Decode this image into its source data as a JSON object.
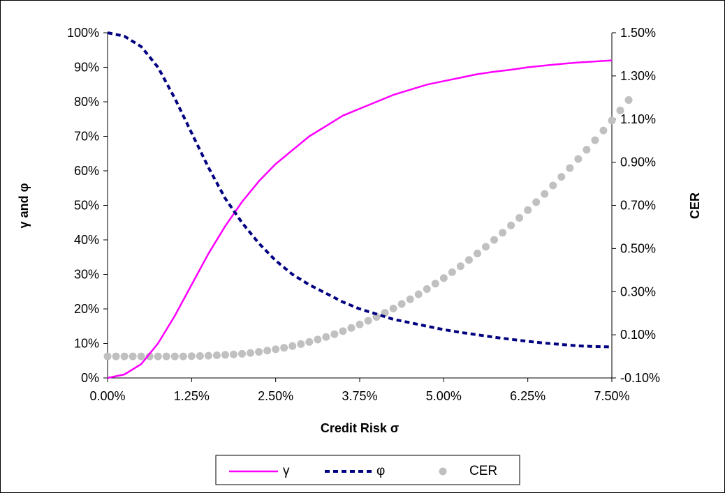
{
  "chart_data": {
    "type": "line",
    "xlabel": "Credit Risk σ",
    "ylabel_left": "γ and φ",
    "ylabel_right": "CER",
    "x_ticks": [
      "0.00%",
      "1.25%",
      "2.50%",
      "3.75%",
      "5.00%",
      "6.25%",
      "7.50%"
    ],
    "x_tick_values": [
      0,
      1.25,
      2.5,
      3.75,
      5.0,
      6.25,
      7.5
    ],
    "xlim": [
      0,
      7.5
    ],
    "y_left_ticks": [
      "0%",
      "10%",
      "20%",
      "30%",
      "40%",
      "50%",
      "60%",
      "70%",
      "80%",
      "90%",
      "100%"
    ],
    "y_left_tick_values": [
      0,
      10,
      20,
      30,
      40,
      50,
      60,
      70,
      80,
      90,
      100
    ],
    "ylim_left": [
      0,
      100
    ],
    "y_right_ticks": [
      "-0.10%",
      "0.10%",
      "0.30%",
      "0.50%",
      "0.70%",
      "0.90%",
      "1.10%",
      "1.30%",
      "1.50%"
    ],
    "y_right_tick_values": [
      -0.1,
      0.1,
      0.3,
      0.5,
      0.7,
      0.9,
      1.1,
      1.3,
      1.5
    ],
    "ylim_right": [
      -0.1,
      1.5
    ],
    "grid": false,
    "legend_position": "bottom",
    "series": [
      {
        "name": "γ",
        "axis": "left",
        "style": "solid",
        "color": "#ff00ff",
        "x": [
          0,
          0.25,
          0.5,
          0.75,
          1.0,
          1.25,
          1.5,
          1.75,
          2.0,
          2.25,
          2.5,
          2.75,
          3.0,
          3.25,
          3.5,
          3.75,
          4.0,
          4.25,
          4.5,
          4.75,
          5.0,
          5.25,
          5.5,
          5.75,
          6.0,
          6.25,
          6.5,
          6.75,
          7.0,
          7.25,
          7.5
        ],
        "values": [
          0,
          1,
          4,
          10,
          18,
          27,
          36,
          44,
          51,
          57,
          62,
          66,
          70,
          73,
          76,
          78,
          80,
          82,
          83.5,
          85,
          86,
          87,
          88,
          88.7,
          89.3,
          90,
          90.5,
          91,
          91.4,
          91.7,
          92
        ]
      },
      {
        "name": "φ",
        "axis": "left",
        "style": "dashed",
        "color": "#000080",
        "x": [
          0,
          0.25,
          0.5,
          0.75,
          1.0,
          1.25,
          1.5,
          1.75,
          2.0,
          2.25,
          2.5,
          2.75,
          3.0,
          3.25,
          3.5,
          3.75,
          4.0,
          4.25,
          4.5,
          4.75,
          5.0,
          5.25,
          5.5,
          5.75,
          6.0,
          6.25,
          6.5,
          6.75,
          7.0,
          7.25,
          7.5
        ],
        "values": [
          100,
          99,
          96,
          90,
          81,
          71,
          61,
          52,
          45,
          39,
          34,
          30,
          27,
          24.5,
          22,
          20,
          18.5,
          17,
          16,
          15,
          14,
          13.2,
          12.5,
          11.8,
          11.2,
          10.6,
          10.1,
          9.7,
          9.3,
          9.1,
          9
        ]
      },
      {
        "name": "CER",
        "axis": "right",
        "style": "markers",
        "color": "#c0c0c0",
        "x_start": 0,
        "x_step": 0.125,
        "values": [
          0,
          0,
          0,
          0,
          0,
          0,
          0,
          0,
          0,
          0,
          0.001,
          0.002,
          0.003,
          0.005,
          0.007,
          0.009,
          0.012,
          0.016,
          0.021,
          0.027,
          0.033,
          0.04,
          0.048,
          0.057,
          0.067,
          0.078,
          0.09,
          0.103,
          0.117,
          0.132,
          0.148,
          0.165,
          0.183,
          0.202,
          0.222,
          0.243,
          0.265,
          0.288,
          0.312,
          0.337,
          0.363,
          0.39,
          0.418,
          0.447,
          0.477,
          0.508,
          0.54,
          0.573,
          0.607,
          0.642,
          0.678,
          0.715,
          0.753,
          0.792,
          0.832,
          0.873,
          0.915,
          0.958,
          1.002,
          1.047,
          1.093,
          1.14,
          1.188
        ]
      }
    ]
  },
  "legend": {
    "items": [
      "γ",
      "φ",
      "CER"
    ]
  }
}
